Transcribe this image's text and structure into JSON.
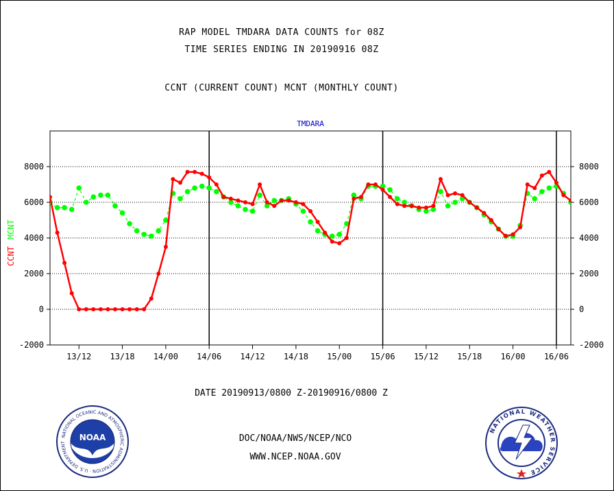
{
  "titles": {
    "line1": "RAP MODEL TMDARA DATA COUNTS for 08Z",
    "line2": "TIME SERIES ENDING IN 20190916 08Z",
    "line3": "CCNT (CURRENT COUNT) MCNT (MONTHLY COUNT)"
  },
  "date_range": "DATE 20190913/0800 Z-20190916/0800 Z",
  "credit": {
    "org": "DOC/NOAA/NWS/NCEP/NCO",
    "url": "WWW.NCEP.NOAA.GOV"
  },
  "logos": {
    "noaa": {
      "center_text": "NOAA",
      "ring_text": "NATIONAL OCEANIC AND ATMOSPHERIC ADMINISTRATION · U.S. DEPARTMENT OF COMMERCE"
    },
    "nws": {
      "ring_text": "NATIONAL WEATHER SERVICE"
    }
  },
  "colors": {
    "ccnt": "#ff0000",
    "mcnt": "#00ff00",
    "title_blue": "#0000cc",
    "date_red": "#ff0000"
  },
  "chart_data": {
    "type": "line",
    "title": "TMDARA",
    "ylabel_left": [
      "CCNT",
      "MCNT"
    ],
    "ylim": [
      -2000,
      10000
    ],
    "yticks": [
      -2000,
      0,
      2000,
      4000,
      6000,
      8000
    ],
    "ytick_labels": [
      "-2000",
      "0",
      "2000",
      "4000",
      "6000",
      "8000"
    ],
    "x_unit": "hours since 2019-09-13 08Z",
    "xlim": [
      0,
      72
    ],
    "xtick_positions": [
      4,
      10,
      16,
      22,
      28,
      34,
      40,
      46,
      52,
      58,
      64,
      70
    ],
    "xtick_labels": [
      "13/12",
      "13/18",
      "14/00",
      "14/06",
      "14/12",
      "14/18",
      "15/00",
      "15/06",
      "15/12",
      "15/18",
      "16/00",
      "16/06"
    ],
    "day_boundaries": [
      22,
      46,
      70
    ],
    "grid": true,
    "series": [
      {
        "name": "CCNT",
        "x": [
          0,
          1,
          2,
          3,
          4,
          5,
          6,
          7,
          8,
          9,
          10,
          11,
          12,
          13,
          14,
          15,
          16,
          17,
          18,
          19,
          20,
          21,
          22,
          23,
          24,
          25,
          26,
          27,
          28,
          29,
          30,
          31,
          32,
          33,
          34,
          35,
          36,
          37,
          38,
          39,
          40,
          41,
          42,
          43,
          44,
          45,
          46,
          47,
          48,
          49,
          50,
          51,
          52,
          53,
          54,
          55,
          56,
          57,
          58,
          59,
          60,
          61,
          62,
          63,
          64,
          65,
          66,
          67,
          68,
          69,
          70,
          71,
          72
        ],
        "values": [
          6300,
          4300,
          2600,
          900,
          0,
          0,
          0,
          0,
          0,
          0,
          0,
          0,
          0,
          0,
          600,
          2000,
          3500,
          7300,
          7100,
          7700,
          7700,
          7600,
          7400,
          7000,
          6300,
          6200,
          6100,
          6000,
          5900,
          7000,
          6000,
          5800,
          6100,
          6100,
          6000,
          5900,
          5500,
          4900,
          4300,
          3800,
          3700,
          4000,
          6200,
          6300,
          7000,
          7000,
          6700,
          6300,
          5900,
          5800,
          5800,
          5700,
          5700,
          5800,
          7300,
          6400,
          6500,
          6400,
          6000,
          5700,
          5400,
          5000,
          4500,
          4100,
          4200,
          4600,
          7000,
          6800,
          7500,
          7700,
          7100,
          6400,
          6100
        ]
      },
      {
        "name": "MCNT",
        "x": [
          0,
          1,
          2,
          3,
          4,
          5,
          6,
          7,
          8,
          9,
          10,
          11,
          12,
          13,
          14,
          15,
          16,
          17,
          18,
          19,
          20,
          21,
          22,
          23,
          24,
          25,
          26,
          27,
          28,
          29,
          30,
          31,
          32,
          33,
          34,
          35,
          36,
          37,
          38,
          39,
          40,
          41,
          42,
          43,
          44,
          45,
          46,
          47,
          48,
          49,
          50,
          51,
          52,
          53,
          54,
          55,
          56,
          57,
          58,
          59,
          60,
          61,
          62,
          63,
          64,
          65,
          66,
          67,
          68,
          69,
          70,
          71,
          72
        ],
        "values": [
          6000,
          5700,
          5700,
          5600,
          6800,
          6000,
          6300,
          6400,
          6400,
          5800,
          5400,
          4800,
          4400,
          4200,
          4100,
          4400,
          5000,
          6500,
          6200,
          6600,
          6800,
          6900,
          6800,
          6600,
          6300,
          6000,
          5800,
          5600,
          5500,
          6400,
          5800,
          6100,
          6100,
          6200,
          5900,
          5500,
          4900,
          4400,
          4200,
          4100,
          4200,
          4800,
          6400,
          6200,
          6900,
          6900,
          6900,
          6700,
          6200,
          6000,
          5800,
          5600,
          5500,
          5600,
          6600,
          5800,
          6000,
          6200,
          6000,
          5700,
          5300,
          4900,
          4500,
          4100,
          4100,
          4700,
          6500,
          6200,
          6600,
          6800,
          6900,
          6500,
          6000
        ]
      }
    ]
  }
}
